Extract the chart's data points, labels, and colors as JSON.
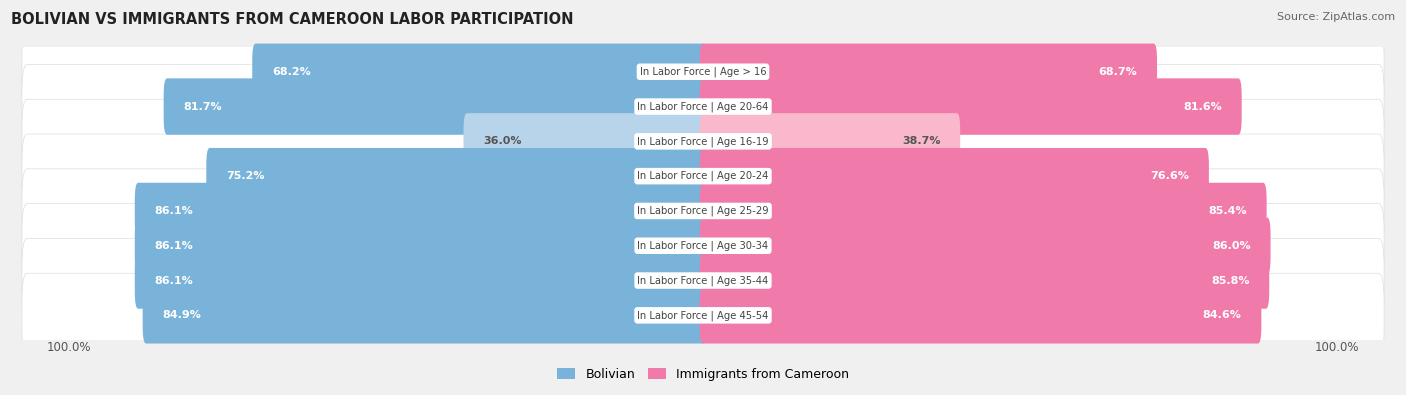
{
  "title": "BOLIVIAN VS IMMIGRANTS FROM CAMEROON LABOR PARTICIPATION",
  "source": "Source: ZipAtlas.com",
  "categories": [
    "In Labor Force | Age > 16",
    "In Labor Force | Age 20-64",
    "In Labor Force | Age 16-19",
    "In Labor Force | Age 20-24",
    "In Labor Force | Age 25-29",
    "In Labor Force | Age 30-34",
    "In Labor Force | Age 35-44",
    "In Labor Force | Age 45-54"
  ],
  "bolivian": [
    68.2,
    81.7,
    36.0,
    75.2,
    86.1,
    86.1,
    86.1,
    84.9
  ],
  "cameroon": [
    68.7,
    81.6,
    38.7,
    76.6,
    85.4,
    86.0,
    85.8,
    84.6
  ],
  "bolivian_color": "#7ab3d9",
  "cameroon_color": "#f07aaa",
  "bolivian_light_color": "#b8d4ea",
  "cameroon_light_color": "#f9b8cc",
  "bg_color": "#f0f0f0",
  "bar_height": 0.62,
  "max_value": 100.0,
  "legend_bolivian": "Bolivian",
  "legend_cameroon": "Immigrants from Cameroon"
}
